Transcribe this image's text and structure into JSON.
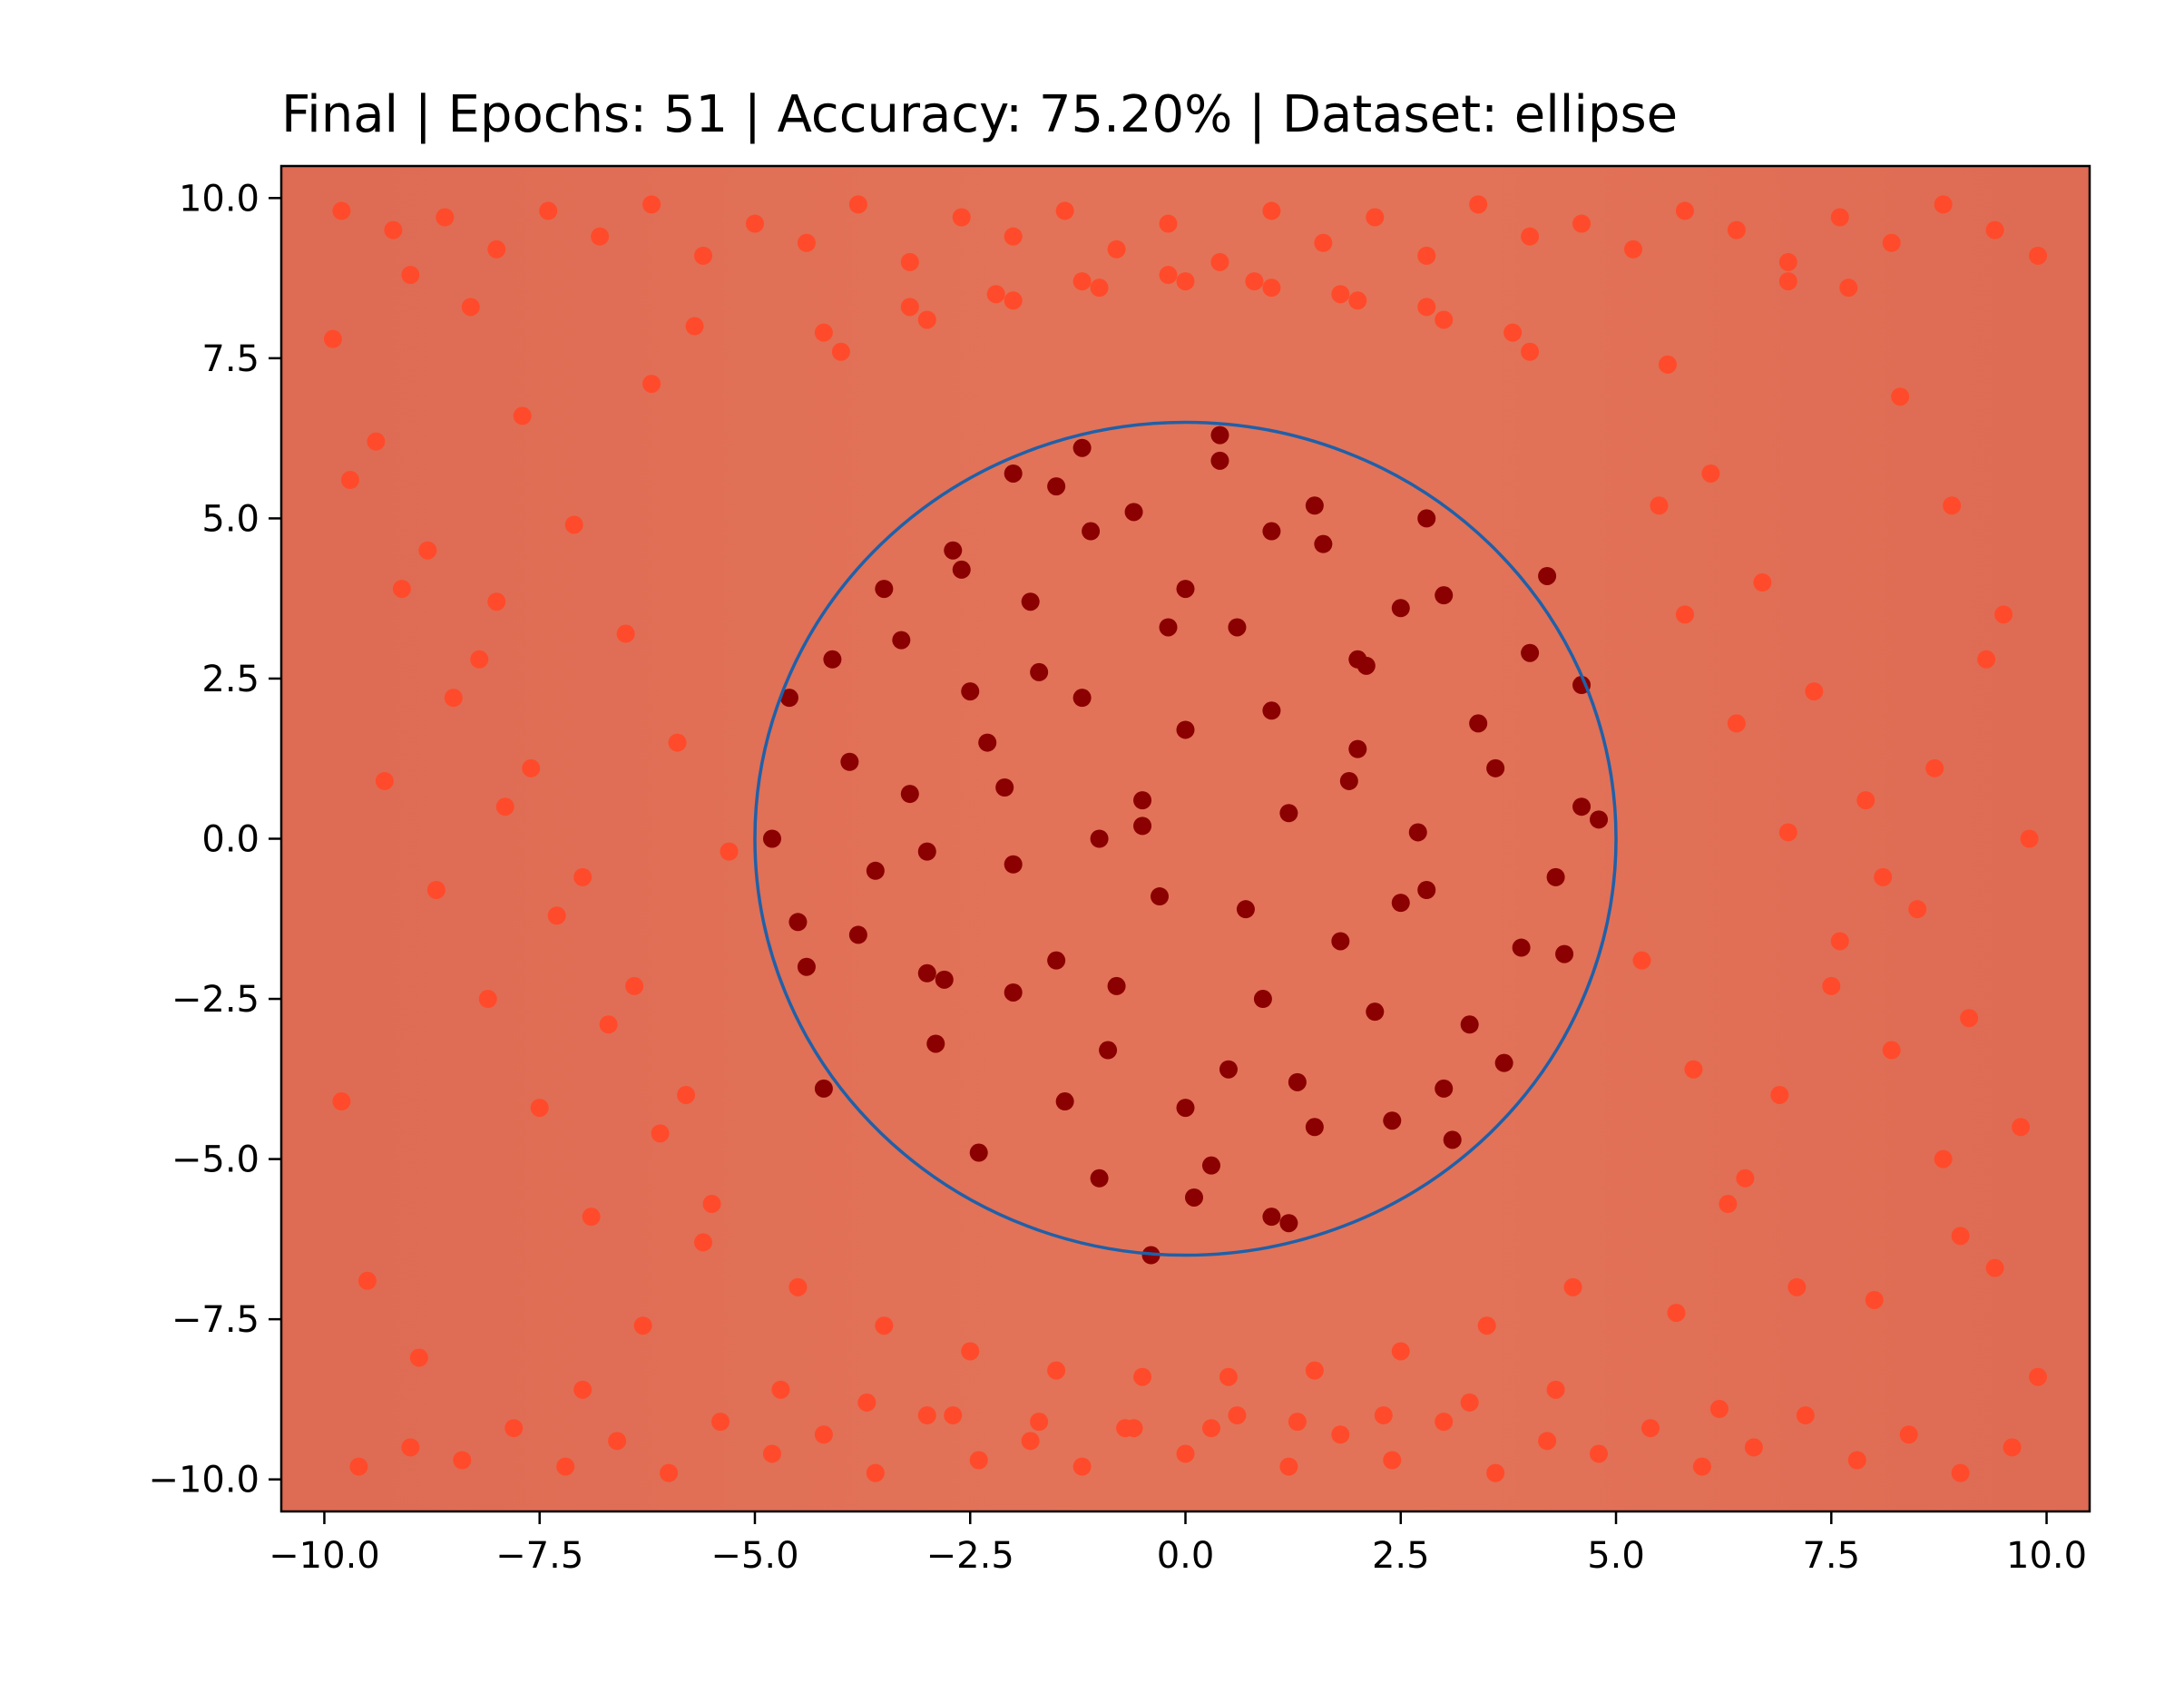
{
  "chart_data": {
    "type": "scatter",
    "title": "Final | Epochs: 51 | Accuracy: 75.20% | Dataset: ellipse",
    "xlabel": "",
    "ylabel": "",
    "xlim": [
      -10.5,
      10.5
    ],
    "ylim": [
      -10.5,
      10.5
    ],
    "x_ticks": [
      -10.0,
      -7.5,
      -5.0,
      -2.5,
      0.0,
      2.5,
      5.0,
      7.5,
      10.0
    ],
    "y_ticks": [
      -10.0,
      -7.5,
      -5.0,
      -2.5,
      0.0,
      2.5,
      5.0,
      7.5,
      10.0
    ],
    "x_tick_labels": [
      "−10.0",
      "−7.5",
      "−5.0",
      "−2.5",
      "0.0",
      "2.5",
      "5.0",
      "7.5",
      "10.0"
    ],
    "y_tick_labels": [
      "−10.0",
      "−7.5",
      "−5.0",
      "−2.5",
      "0.0",
      "2.5",
      "5.0",
      "7.5",
      "10.0"
    ],
    "grid": false,
    "background": {
      "description": "decision surface shading",
      "base_color": "#de6b54",
      "band_color": "#e27358"
    },
    "ellipse": {
      "center": [
        0.0,
        0.0
      ],
      "rx": 5.0,
      "ry": 6.5,
      "color": "#2060a8"
    },
    "series": [
      {
        "label_class": "inside",
        "color": "#8b0000",
        "x": [
          -4.1,
          -3.8,
          -3.5,
          -3.2,
          -2.9,
          -2.6,
          -2.3,
          -2.0,
          -1.7,
          -1.4,
          -1.1,
          -0.8,
          -0.5,
          -0.2,
          0.1,
          0.4,
          0.7,
          1.0,
          1.3,
          1.6,
          1.9,
          2.2,
          2.5,
          2.8,
          3.1,
          3.4,
          3.7,
          4.0,
          4.3,
          4.6,
          -4.5,
          -4.2,
          -3.9,
          -3.6,
          -3.3,
          -3.0,
          -2.7,
          -2.4,
          -2.1,
          -1.8,
          -1.5,
          -1.2,
          -0.9,
          -0.6,
          -0.3,
          0.0,
          0.3,
          0.6,
          0.9,
          1.2,
          1.5,
          1.8,
          2.1,
          2.4,
          2.7,
          3.0,
          3.3,
          3.6,
          3.9,
          4.2,
          -3.0,
          -2.5,
          -2.0,
          -1.5,
          -1.0,
          -0.5,
          0.0,
          0.5,
          1.0,
          1.5,
          2.0,
          2.5,
          3.0,
          -2.0,
          -1.0,
          0.0,
          1.0,
          2.0,
          -2.8,
          2.8,
          -4.8,
          -4.6,
          -4.4,
          4.4,
          4.6,
          4.8,
          -1.2,
          1.2,
          0.4,
          -0.4
        ],
        "y": [
          2.8,
          -1.5,
          3.9,
          0.7,
          -3.2,
          4.2,
          1.5,
          -0.4,
          2.6,
          -4.1,
          4.8,
          -2.3,
          0.2,
          3.3,
          -5.6,
          5.9,
          -1.1,
          2.0,
          -3.8,
          4.6,
          0.9,
          -2.7,
          3.6,
          -0.8,
          -4.7,
          1.8,
          -3.5,
          2.9,
          -0.6,
          0.5,
          -1.3,
          -3.9,
          1.2,
          -0.5,
          3.1,
          -2.1,
          4.5,
          -4.9,
          0.8,
          3.7,
          -1.9,
          2.2,
          -3.3,
          5.1,
          -0.9,
          1.7,
          -5.1,
          3.3,
          -2.5,
          0.4,
          5.2,
          -1.6,
          2.7,
          -4.4,
          0.1,
          3.8,
          -2.9,
          1.1,
          -1.7,
          4.1,
          -0.2,
          2.3,
          -2.4,
          5.5,
          -5.3,
          0.6,
          3.9,
          -3.6,
          4.8,
          -4.5,
          1.4,
          -1.0,
          -3.9,
          5.7,
          0.0,
          -4.2,
          -5.9,
          2.8,
          -2.2,
          5.0,
          0.0,
          2.2,
          -2.0,
          -1.8,
          2.4,
          0.3,
          6.1,
          -6.0,
          6.3,
          -6.5
        ]
      },
      {
        "label_class": "outside",
        "color": "#ff4b2b",
        "x": [
          -9.8,
          -9.2,
          -8.6,
          -8.0,
          -7.4,
          -6.8,
          -6.2,
          -5.6,
          -5.0,
          -4.4,
          -3.8,
          -3.2,
          -2.6,
          -2.0,
          -1.4,
          -0.8,
          -0.2,
          0.4,
          1.0,
          1.6,
          2.2,
          2.8,
          3.4,
          4.0,
          4.6,
          5.2,
          5.8,
          6.4,
          7.0,
          7.6,
          8.2,
          8.8,
          9.4,
          9.9,
          -9.6,
          -9.0,
          -8.4,
          -7.8,
          -7.2,
          -6.6,
          -6.0,
          -5.4,
          -4.8,
          -4.2,
          -3.6,
          -3.0,
          -2.4,
          -1.8,
          -1.2,
          -0.6,
          0.0,
          0.6,
          1.2,
          1.8,
          2.4,
          3.0,
          3.6,
          4.2,
          4.8,
          5.4,
          6.0,
          6.6,
          7.2,
          7.8,
          8.4,
          9.0,
          9.6,
          -9.9,
          -9.4,
          -8.8,
          -8.2,
          -7.6,
          -7.0,
          -6.4,
          -5.8,
          -5.5,
          5.5,
          5.8,
          6.4,
          7.0,
          7.6,
          8.2,
          8.8,
          9.4,
          9.9,
          -9.7,
          -9.1,
          -8.5,
          -7.9,
          -7.3,
          -6.7,
          -6.1,
          -5.6,
          5.6,
          6.1,
          6.7,
          7.3,
          7.9,
          8.5,
          9.1,
          9.7,
          -9.5,
          -8.9,
          -8.3,
          -7.7,
          -7.1,
          -6.5,
          -5.9,
          -5.3,
          5.3,
          5.9,
          6.5,
          7.1,
          7.7,
          8.3,
          8.9,
          9.5,
          -9.3,
          -8.7,
          -8.1,
          -7.5,
          -6.9,
          -6.3,
          -5.7,
          5.7,
          6.3,
          6.9,
          7.5,
          8.1,
          8.7,
          9.3,
          -9.8,
          -8.0,
          -6.2,
          6.2,
          8.0,
          9.8,
          -9.0,
          -7.0,
          7.0,
          9.0,
          -4.0,
          -3.0,
          -2.0,
          -1.0,
          0.0,
          1.0,
          2.0,
          3.0,
          4.0,
          -4.5,
          -3.5,
          -2.5,
          -1.5,
          -0.5,
          0.5,
          1.5,
          2.5,
          3.5,
          4.5,
          -4.2,
          -3.2,
          -2.2,
          -1.2,
          -0.2,
          0.8,
          1.8,
          2.8,
          3.8,
          -4.7,
          -3.7,
          -2.7,
          -1.7,
          -0.7,
          0.3,
          1.3,
          2.3,
          3.3,
          4.3
        ],
        "y": [
          9.8,
          9.5,
          9.7,
          9.2,
          9.8,
          9.4,
          9.9,
          9.1,
          9.6,
          9.3,
          9.9,
          9.0,
          9.7,
          9.4,
          9.8,
          9.2,
          9.6,
          9.0,
          9.8,
          9.3,
          9.7,
          9.1,
          9.9,
          9.4,
          9.6,
          9.2,
          9.8,
          9.5,
          9.0,
          9.7,
          9.3,
          9.9,
          9.5,
          9.1,
          -9.8,
          -9.5,
          -9.7,
          -9.2,
          -9.8,
          -9.4,
          -9.9,
          -9.1,
          -9.6,
          -9.3,
          -9.9,
          -9.0,
          -9.7,
          -9.4,
          -9.8,
          -9.2,
          -9.6,
          -9.0,
          -9.8,
          -9.3,
          -9.7,
          -9.1,
          -9.9,
          -9.4,
          -9.6,
          -9.2,
          -9.8,
          -9.5,
          -9.0,
          -9.7,
          -9.3,
          -9.9,
          -9.5,
          7.8,
          6.2,
          4.5,
          2.8,
          1.1,
          -0.6,
          -2.3,
          -4.0,
          -5.7,
          5.2,
          3.5,
          1.8,
          0.1,
          -1.6,
          -3.3,
          -5.0,
          -6.7,
          -8.4,
          5.6,
          3.9,
          2.2,
          0.5,
          -1.2,
          -2.9,
          -4.6,
          -6.3,
          7.4,
          5.7,
          4.0,
          2.3,
          0.6,
          -1.1,
          -2.8,
          -4.5,
          -6.9,
          -8.1,
          8.3,
          6.6,
          4.9,
          3.2,
          1.5,
          -0.2,
          -1.9,
          -3.6,
          -5.3,
          -7.0,
          8.6,
          6.9,
          5.2,
          3.5,
          0.9,
          -0.8,
          -2.5,
          -4.2,
          -5.9,
          -7.6,
          8.0,
          -7.4,
          -5.7,
          -4.0,
          -2.3,
          -0.6,
          1.1,
          2.8,
          -4.1,
          3.7,
          7.1,
          -8.9,
          -7.2,
          0.0,
          8.8,
          -8.6,
          8.7,
          -6.2,
          7.6,
          8.1,
          8.4,
          8.6,
          8.7,
          8.6,
          8.4,
          8.1,
          7.6,
          -7.0,
          -7.6,
          -8.0,
          -8.3,
          -8.4,
          -8.4,
          -8.3,
          -8.0,
          -7.6,
          -7.0,
          7.9,
          8.3,
          8.5,
          8.7,
          8.8,
          8.7,
          8.5,
          8.3,
          7.9,
          -8.6,
          -8.8,
          -9.0,
          -9.1,
          -9.2,
          -9.2,
          -9.1,
          -9.0,
          -8.8,
          -8.6
        ]
      }
    ]
  }
}
